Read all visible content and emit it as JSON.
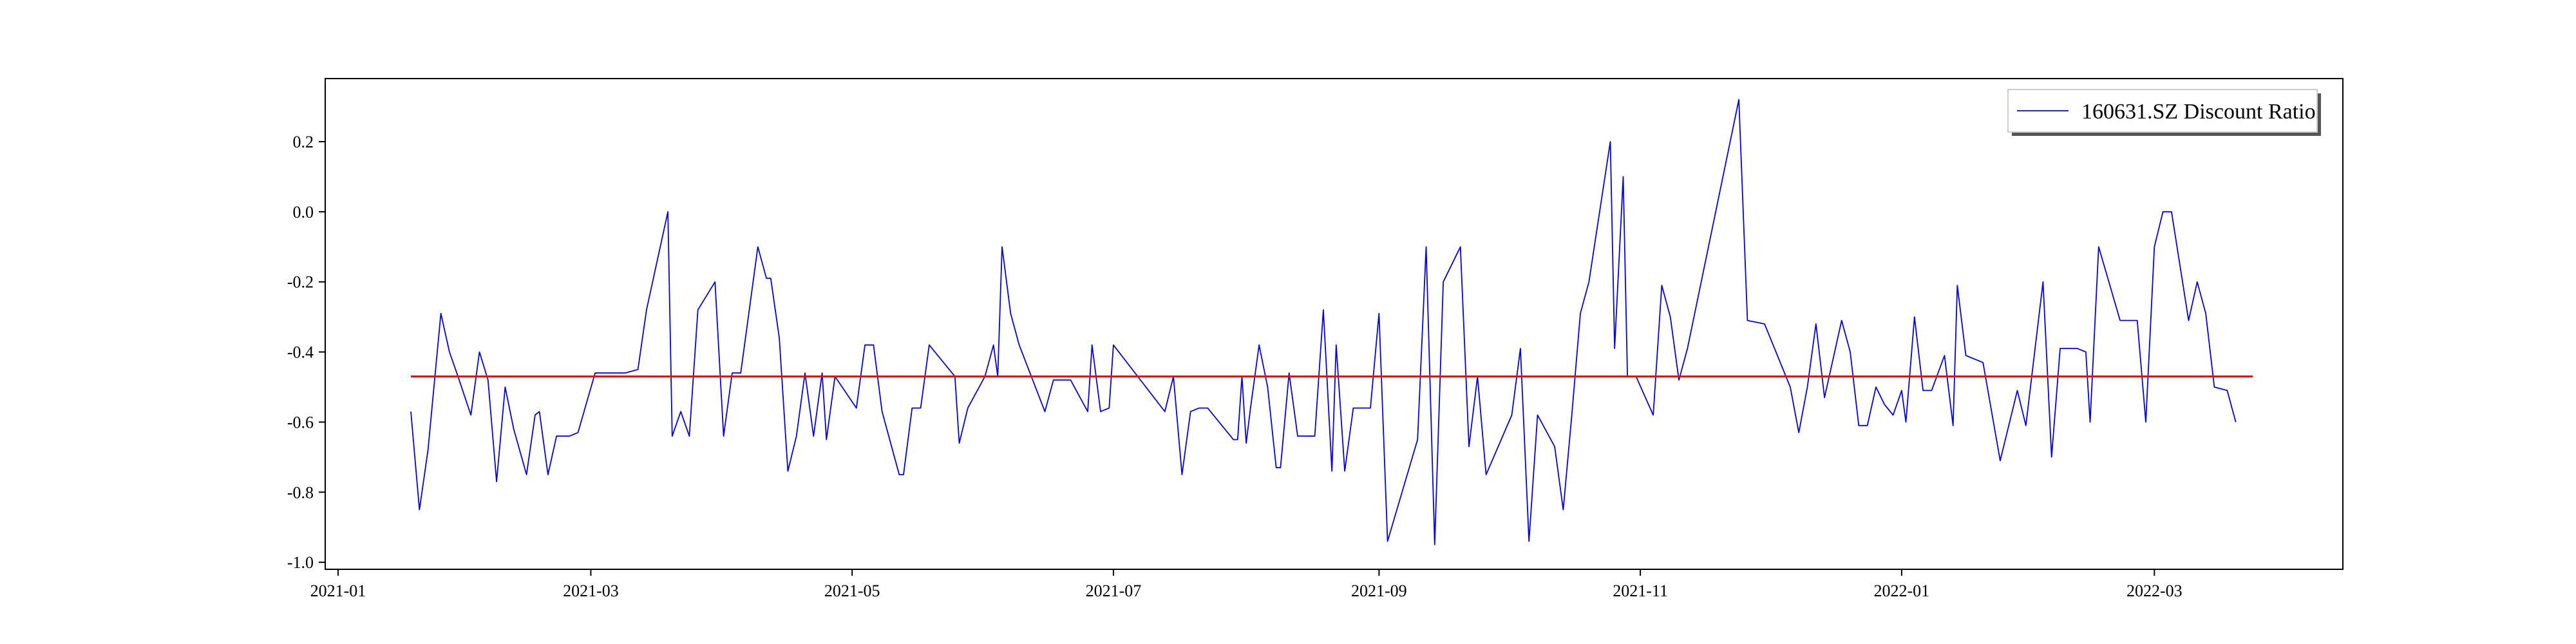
{
  "chart_data": {
    "type": "line",
    "title": "",
    "xlabel": "",
    "ylabel": "",
    "x_axis_type": "date",
    "xlim": [
      "2020-12-29",
      "2022-04-14"
    ],
    "ylim": [
      -1.02,
      0.38
    ],
    "x_ticks": [
      "2021-01",
      "2021-03",
      "2021-05",
      "2021-07",
      "2021-09",
      "2021-11",
      "2022-01",
      "2022-03"
    ],
    "y_ticks": [
      "-1.0",
      "-0.8",
      "-0.6",
      "-0.4",
      "-0.2",
      "0.0",
      "0.2"
    ],
    "y_tick_values": [
      -1.0,
      -0.8,
      -0.6,
      -0.4,
      -0.2,
      0.0,
      0.2
    ],
    "grid": false,
    "legend_position": "top-right",
    "series": [
      {
        "name": "160631.SZ Discount Ratio",
        "color": "#0000ff",
        "points": [
          [
            "2021-01-18",
            -0.57
          ],
          [
            "2021-01-20",
            -0.85
          ],
          [
            "2021-01-22",
            -0.68
          ],
          [
            "2021-01-25",
            -0.29
          ],
          [
            "2021-01-27",
            -0.4
          ],
          [
            "2021-01-29",
            -0.47
          ],
          [
            "2021-02-01",
            -0.58
          ],
          [
            "2021-02-03",
            -0.4
          ],
          [
            "2021-02-05",
            -0.48
          ],
          [
            "2021-02-07",
            -0.77
          ],
          [
            "2021-02-09",
            -0.5
          ],
          [
            "2021-02-11",
            -0.62
          ],
          [
            "2021-02-14",
            -0.75
          ],
          [
            "2021-02-16",
            -0.58
          ],
          [
            "2021-02-17",
            -0.57
          ],
          [
            "2021-02-19",
            -0.75
          ],
          [
            "2021-02-21",
            -0.64
          ],
          [
            "2021-02-24",
            -0.64
          ],
          [
            "2021-02-26",
            -0.63
          ],
          [
            "2021-03-02",
            -0.46
          ],
          [
            "2021-03-09",
            -0.46
          ],
          [
            "2021-03-12",
            -0.45
          ],
          [
            "2021-03-14",
            -0.28
          ],
          [
            "2021-03-19",
            0.0
          ],
          [
            "2021-03-20",
            -0.64
          ],
          [
            "2021-03-22",
            -0.57
          ],
          [
            "2021-03-24",
            -0.64
          ],
          [
            "2021-03-26",
            -0.28
          ],
          [
            "2021-03-30",
            -0.2
          ],
          [
            "2021-04-01",
            -0.64
          ],
          [
            "2021-04-03",
            -0.46
          ],
          [
            "2021-04-05",
            -0.46
          ],
          [
            "2021-04-09",
            -0.1
          ],
          [
            "2021-04-11",
            -0.19
          ],
          [
            "2021-04-12",
            -0.19
          ],
          [
            "2021-04-14",
            -0.36
          ],
          [
            "2021-04-16",
            -0.74
          ],
          [
            "2021-04-18",
            -0.64
          ],
          [
            "2021-04-20",
            -0.46
          ],
          [
            "2021-04-22",
            -0.64
          ],
          [
            "2021-04-24",
            -0.46
          ],
          [
            "2021-04-25",
            -0.65
          ],
          [
            "2021-04-27",
            -0.47
          ],
          [
            "2021-05-02",
            -0.56
          ],
          [
            "2021-05-04",
            -0.38
          ],
          [
            "2021-05-06",
            -0.38
          ],
          [
            "2021-05-08",
            -0.57
          ],
          [
            "2021-05-12",
            -0.75
          ],
          [
            "2021-05-13",
            -0.75
          ],
          [
            "2021-05-15",
            -0.56
          ],
          [
            "2021-05-17",
            -0.56
          ],
          [
            "2021-05-19",
            -0.38
          ],
          [
            "2021-05-25",
            -0.47
          ],
          [
            "2021-05-26",
            -0.66
          ],
          [
            "2021-05-28",
            -0.56
          ],
          [
            "2021-06-01",
            -0.47
          ],
          [
            "2021-06-03",
            -0.38
          ],
          [
            "2021-06-04",
            -0.47
          ],
          [
            "2021-06-05",
            -0.1
          ],
          [
            "2021-06-07",
            -0.29
          ],
          [
            "2021-06-09",
            -0.38
          ],
          [
            "2021-06-15",
            -0.57
          ],
          [
            "2021-06-17",
            -0.48
          ],
          [
            "2021-06-21",
            -0.48
          ],
          [
            "2021-06-25",
            -0.57
          ],
          [
            "2021-06-26",
            -0.38
          ],
          [
            "2021-06-28",
            -0.57
          ],
          [
            "2021-06-30",
            -0.56
          ],
          [
            "2021-07-01",
            -0.38
          ],
          [
            "2021-07-13",
            -0.57
          ],
          [
            "2021-07-15",
            -0.47
          ],
          [
            "2021-07-17",
            -0.75
          ],
          [
            "2021-07-19",
            -0.57
          ],
          [
            "2021-07-21",
            -0.56
          ],
          [
            "2021-07-23",
            -0.56
          ],
          [
            "2021-07-29",
            -0.65
          ],
          [
            "2021-07-30",
            -0.65
          ],
          [
            "2021-07-31",
            -0.47
          ],
          [
            "2021-08-01",
            -0.66
          ],
          [
            "2021-08-02",
            -0.56
          ],
          [
            "2021-08-04",
            -0.38
          ],
          [
            "2021-08-06",
            -0.5
          ],
          [
            "2021-08-08",
            -0.73
          ],
          [
            "2021-08-09",
            -0.73
          ],
          [
            "2021-08-11",
            -0.46
          ],
          [
            "2021-08-13",
            -0.64
          ],
          [
            "2021-08-15",
            -0.64
          ],
          [
            "2021-08-17",
            -0.64
          ],
          [
            "2021-08-19",
            -0.28
          ],
          [
            "2021-08-21",
            -0.74
          ],
          [
            "2021-08-22",
            -0.38
          ],
          [
            "2021-08-24",
            -0.74
          ],
          [
            "2021-08-26",
            -0.56
          ],
          [
            "2021-08-28",
            -0.56
          ],
          [
            "2021-08-30",
            -0.56
          ],
          [
            "2021-09-01",
            -0.29
          ],
          [
            "2021-09-03",
            -0.94
          ],
          [
            "2021-09-10",
            -0.65
          ],
          [
            "2021-09-12",
            -0.1
          ],
          [
            "2021-09-14",
            -0.95
          ],
          [
            "2021-09-16",
            -0.2
          ],
          [
            "2021-09-20",
            -0.1
          ],
          [
            "2021-09-22",
            -0.67
          ],
          [
            "2021-09-24",
            -0.47
          ],
          [
            "2021-09-26",
            -0.75
          ],
          [
            "2021-10-02",
            -0.58
          ],
          [
            "2021-10-04",
            -0.39
          ],
          [
            "2021-10-06",
            -0.94
          ],
          [
            "2021-10-08",
            -0.58
          ],
          [
            "2021-10-12",
            -0.67
          ],
          [
            "2021-10-14",
            -0.85
          ],
          [
            "2021-10-16",
            -0.58
          ],
          [
            "2021-10-18",
            -0.29
          ],
          [
            "2021-10-20",
            -0.2
          ],
          [
            "2021-10-25",
            0.2
          ],
          [
            "2021-10-26",
            -0.39
          ],
          [
            "2021-10-28",
            0.1
          ],
          [
            "2021-10-29",
            -0.47
          ],
          [
            "2021-10-31",
            -0.47
          ],
          [
            "2021-11-04",
            -0.58
          ],
          [
            "2021-11-06",
            -0.21
          ],
          [
            "2021-11-08",
            -0.3
          ],
          [
            "2021-11-10",
            -0.48
          ],
          [
            "2021-11-12",
            -0.39
          ],
          [
            "2021-11-24",
            0.32
          ],
          [
            "2021-11-26",
            -0.31
          ],
          [
            "2021-11-30",
            -0.32
          ],
          [
            "2021-12-06",
            -0.5
          ],
          [
            "2021-12-08",
            -0.63
          ],
          [
            "2021-12-10",
            -0.5
          ],
          [
            "2021-12-12",
            -0.32
          ],
          [
            "2021-12-14",
            -0.53
          ],
          [
            "2021-12-18",
            -0.31
          ],
          [
            "2021-12-20",
            -0.4
          ],
          [
            "2021-12-22",
            -0.61
          ],
          [
            "2021-12-24",
            -0.61
          ],
          [
            "2021-12-26",
            -0.5
          ],
          [
            "2021-12-28",
            -0.55
          ],
          [
            "2021-12-30",
            -0.58
          ],
          [
            "2022-01-01",
            -0.51
          ],
          [
            "2022-01-02",
            -0.6
          ],
          [
            "2022-01-04",
            -0.3
          ],
          [
            "2022-01-06",
            -0.51
          ],
          [
            "2022-01-08",
            -0.51
          ],
          [
            "2022-01-11",
            -0.41
          ],
          [
            "2022-01-13",
            -0.61
          ],
          [
            "2022-01-14",
            -0.21
          ],
          [
            "2022-01-16",
            -0.41
          ],
          [
            "2022-01-20",
            -0.43
          ],
          [
            "2022-01-24",
            -0.71
          ],
          [
            "2022-01-26",
            -0.61
          ],
          [
            "2022-01-28",
            -0.51
          ],
          [
            "2022-01-30",
            -0.61
          ],
          [
            "2022-02-03",
            -0.2
          ],
          [
            "2022-02-05",
            -0.7
          ],
          [
            "2022-02-07",
            -0.39
          ],
          [
            "2022-02-11",
            -0.39
          ],
          [
            "2022-02-13",
            -0.4
          ],
          [
            "2022-02-14",
            -0.6
          ],
          [
            "2022-02-16",
            -0.1
          ],
          [
            "2022-02-21",
            -0.31
          ],
          [
            "2022-02-25",
            -0.31
          ],
          [
            "2022-02-27",
            -0.6
          ],
          [
            "2022-03-01",
            -0.1
          ],
          [
            "2022-03-03",
            0.0
          ],
          [
            "2022-03-05",
            0.0
          ],
          [
            "2022-03-09",
            -0.31
          ],
          [
            "2022-03-11",
            -0.2
          ],
          [
            "2022-03-13",
            -0.29
          ],
          [
            "2022-03-15",
            -0.5
          ],
          [
            "2022-03-18",
            -0.51
          ],
          [
            "2022-03-20",
            -0.6
          ]
        ]
      },
      {
        "name": "",
        "color": "#ff0000",
        "points": [
          [
            "2021-01-18",
            -0.47
          ],
          [
            "2022-03-24",
            -0.47
          ]
        ]
      }
    ]
  }
}
